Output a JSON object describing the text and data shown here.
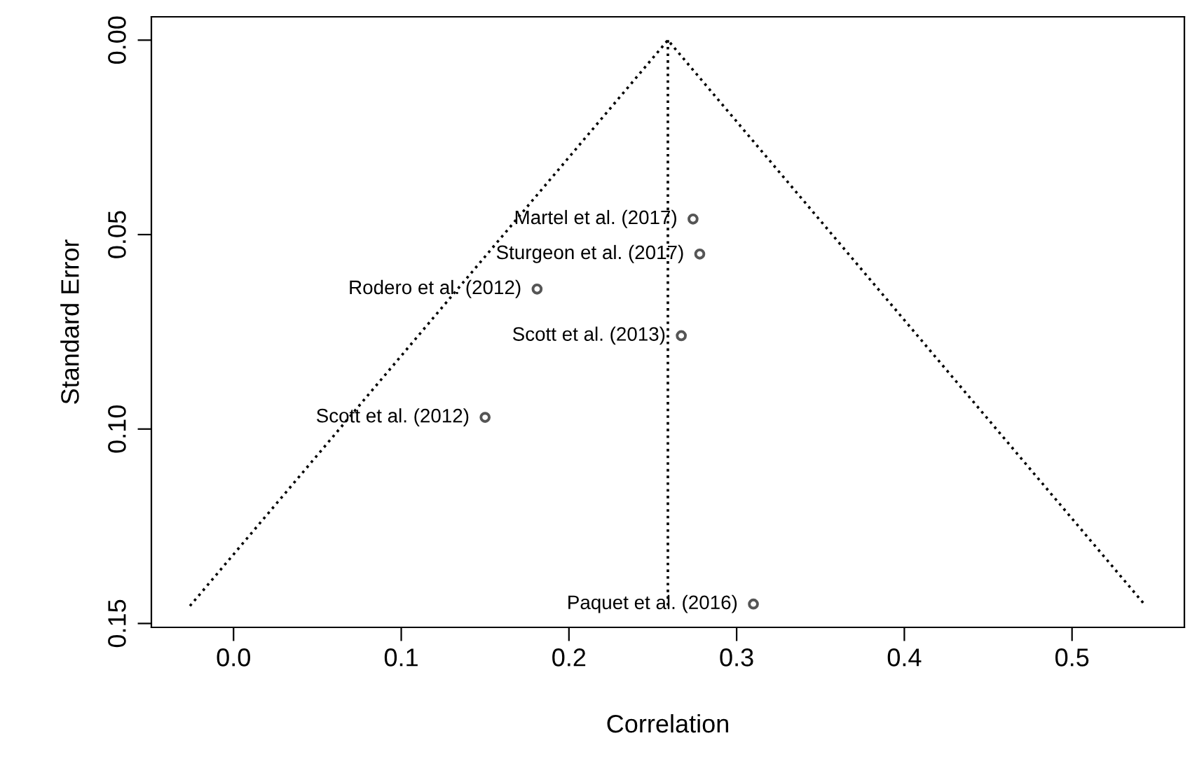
{
  "chart_data": {
    "type": "scatter",
    "xlabel": "Correlation",
    "ylabel": "Standard Error",
    "xlim": [
      -0.049,
      0.567
    ],
    "ylim": [
      0.151,
      -0.006
    ],
    "xticks": [
      {
        "value": 0.0,
        "label": "0.0"
      },
      {
        "value": 0.1,
        "label": "0.1"
      },
      {
        "value": 0.2,
        "label": "0.2"
      },
      {
        "value": 0.3,
        "label": "0.3"
      },
      {
        "value": 0.4,
        "label": "0.4"
      },
      {
        "value": 0.5,
        "label": "0.5"
      }
    ],
    "yticks": [
      {
        "value": 0.0,
        "label": "0.00"
      },
      0.05,
      {
        "value": 0.1,
        "label": "0.10"
      },
      0.15
    ],
    "grid": false,
    "legend": false,
    "series": [
      {
        "type": "line",
        "line_style": "dotted",
        "color": "#000000",
        "x": [
          -0.026,
          0.259,
          0.544
        ],
        "values": [
          0.1455,
          0.0,
          0.1455
        ]
      },
      {
        "type": "line",
        "line_style": "dotted",
        "color": "#000000",
        "x": [
          0.259,
          0.259
        ],
        "values": [
          0.0,
          0.1455
        ]
      },
      {
        "marker": "circle",
        "color": "#555555",
        "x": [
          0.274,
          0.278,
          0.181,
          0.267,
          0.15,
          0.31
        ],
        "values": [
          0.046,
          0.055,
          0.064,
          0.076,
          0.097,
          0.145
        ]
      }
    ],
    "annotations": [
      {
        "text": "Martel et al. (2017)",
        "x": 0.274,
        "y": 0.046
      },
      {
        "text": "Sturgeon et al. (2017)",
        "x": 0.278,
        "y": 0.055
      },
      {
        "text": "Rodero et al. (2012)",
        "x": 0.181,
        "y": 0.064
      },
      {
        "text": "Scott et al. (2013)",
        "x": 0.267,
        "y": 0.076
      },
      {
        "text": "Scott et al. (2012)",
        "x": 0.15,
        "y": 0.097
      },
      {
        "text": "Paquet et al. (2016)",
        "x": 0.31,
        "y": 0.145
      }
    ]
  }
}
